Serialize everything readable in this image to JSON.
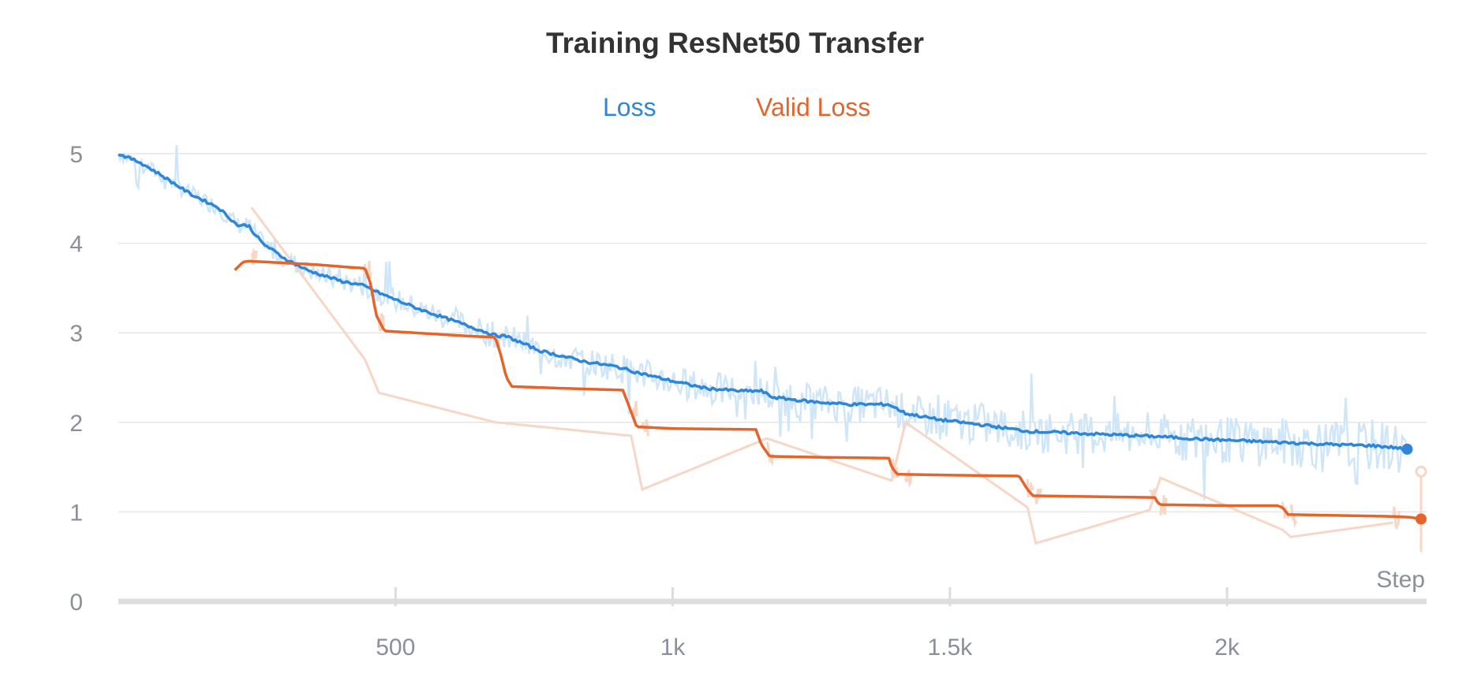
{
  "chart_data": {
    "type": "line",
    "title": "Training ResNet50 Transfer",
    "xlabel": "Step",
    "ylabel": "",
    "xlim": [
      0,
      2360
    ],
    "ylim": [
      0,
      5
    ],
    "x_ticks": [
      500,
      1000,
      1500,
      2000
    ],
    "x_tick_labels": [
      "500",
      "1k",
      "1.5k",
      "2k"
    ],
    "y_ticks": [
      0,
      1,
      2,
      3,
      4,
      5
    ],
    "y_tick_labels": [
      "0",
      "1",
      "2",
      "3",
      "4",
      "5"
    ],
    "grid": "horizontal",
    "legend_position": "top-center",
    "series": [
      {
        "name": "Loss",
        "color": "#2E86D9",
        "raw_color": "#CFE5F8",
        "smoothed": [
          [
            0,
            5.0
          ],
          [
            40,
            4.9
          ],
          [
            80,
            4.75
          ],
          [
            130,
            4.55
          ],
          [
            180,
            4.4
          ],
          [
            215,
            4.2
          ],
          [
            235,
            4.2
          ],
          [
            240,
            4.15
          ],
          [
            260,
            4.0
          ],
          [
            300,
            3.83
          ],
          [
            340,
            3.7
          ],
          [
            400,
            3.58
          ],
          [
            440,
            3.53
          ],
          [
            480,
            3.42
          ],
          [
            540,
            3.27
          ],
          [
            620,
            3.1
          ],
          [
            680,
            2.97
          ],
          [
            700,
            2.96
          ],
          [
            760,
            2.8
          ],
          [
            840,
            2.68
          ],
          [
            900,
            2.62
          ],
          [
            940,
            2.55
          ],
          [
            1000,
            2.46
          ],
          [
            1060,
            2.38
          ],
          [
            1120,
            2.35
          ],
          [
            1160,
            2.35
          ],
          [
            1180,
            2.28
          ],
          [
            1250,
            2.23
          ],
          [
            1320,
            2.2
          ],
          [
            1390,
            2.2
          ],
          [
            1420,
            2.1
          ],
          [
            1480,
            2.03
          ],
          [
            1560,
            1.97
          ],
          [
            1640,
            1.9
          ],
          [
            1720,
            1.88
          ],
          [
            1800,
            1.86
          ],
          [
            1880,
            1.84
          ],
          [
            1960,
            1.81
          ],
          [
            2040,
            1.79
          ],
          [
            2120,
            1.77
          ],
          [
            2200,
            1.75
          ],
          [
            2260,
            1.74
          ],
          [
            2300,
            1.72
          ],
          [
            2325,
            1.7
          ]
        ],
        "end_value": 1.7
      },
      {
        "name": "Valid Loss",
        "color": "#E4642A",
        "raw_color": "#F7D6C6",
        "smoothed": [
          [
            210,
            3.7
          ],
          [
            225,
            3.79
          ],
          [
            235,
            3.8
          ],
          [
            300,
            3.78
          ],
          [
            360,
            3.76
          ],
          [
            420,
            3.73
          ],
          [
            445,
            3.72
          ],
          [
            455,
            3.55
          ],
          [
            465,
            3.2
          ],
          [
            480,
            3.02
          ],
          [
            560,
            2.99
          ],
          [
            640,
            2.96
          ],
          [
            680,
            2.95
          ],
          [
            690,
            2.75
          ],
          [
            700,
            2.5
          ],
          [
            710,
            2.4
          ],
          [
            800,
            2.38
          ],
          [
            910,
            2.36
          ],
          [
            920,
            2.2
          ],
          [
            935,
            1.95
          ],
          [
            1000,
            1.93
          ],
          [
            1150,
            1.92
          ],
          [
            1160,
            1.75
          ],
          [
            1175,
            1.62
          ],
          [
            1260,
            1.61
          ],
          [
            1390,
            1.6
          ],
          [
            1395,
            1.5
          ],
          [
            1405,
            1.42
          ],
          [
            1500,
            1.41
          ],
          [
            1625,
            1.4
          ],
          [
            1640,
            1.25
          ],
          [
            1650,
            1.18
          ],
          [
            1760,
            1.17
          ],
          [
            1870,
            1.16
          ],
          [
            1875,
            1.1
          ],
          [
            1880,
            1.08
          ],
          [
            2000,
            1.07
          ],
          [
            2090,
            1.07
          ],
          [
            2100,
            1.05
          ],
          [
            2110,
            0.97
          ],
          [
            2200,
            0.96
          ],
          [
            2290,
            0.95
          ],
          [
            2330,
            0.94
          ],
          [
            2350,
            0.92
          ]
        ],
        "raw_jumps": [
          [
            240,
            4.4
          ],
          [
            445,
            2.7
          ],
          [
            470,
            2.33
          ],
          [
            680,
            2.0
          ],
          [
            925,
            1.85
          ],
          [
            945,
            1.25
          ],
          [
            1170,
            1.82
          ],
          [
            1395,
            1.35
          ],
          [
            1420,
            2.0
          ],
          [
            1640,
            1.05
          ],
          [
            1655,
            0.65
          ],
          [
            1860,
            1.02
          ],
          [
            1880,
            1.38
          ],
          [
            2100,
            0.8
          ],
          [
            2115,
            0.72
          ],
          [
            2300,
            0.88
          ]
        ],
        "end_value": 0.92,
        "raw_end_value": 1.45
      }
    ]
  }
}
